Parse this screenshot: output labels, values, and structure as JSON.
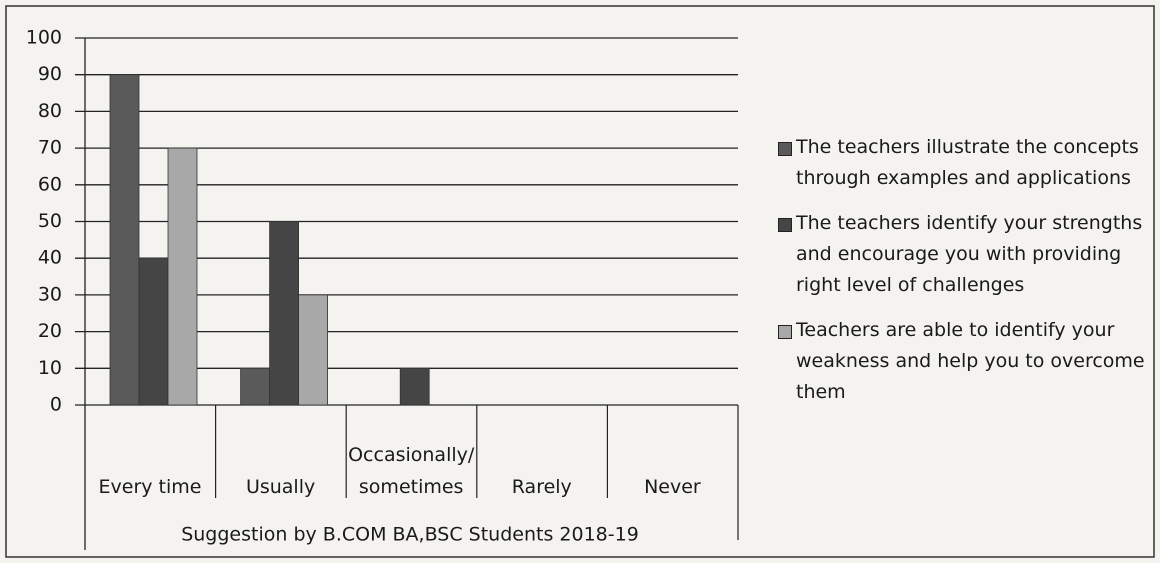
{
  "chart_data": {
    "type": "bar",
    "x_label": "Suggestion by B.COM BA,BSC Students 2018-19",
    "categories": [
      "Every time",
      "Usually",
      "Occasionally/ sometimes",
      "Rarely",
      "Never"
    ],
    "series": [
      {
        "name": "The teachers illustrate the concepts through examples and applications",
        "color": "#5a5a5a",
        "values": [
          90,
          10,
          0,
          0,
          0
        ]
      },
      {
        "name": "The teachers identify your strengths and encourage you with providing right level of challenges",
        "color": "#454545",
        "values": [
          40,
          50,
          10,
          0,
          0
        ]
      },
      {
        "name": "Teachers are able to identify your weakness and help you to overcome them",
        "color": "#a8a8a8",
        "values": [
          70,
          30,
          0,
          0,
          0
        ]
      }
    ],
    "ylim": [
      0,
      100
    ],
    "yticks": [
      0,
      10,
      20,
      30,
      40,
      50,
      60,
      70,
      80,
      90,
      100
    ],
    "grid": true,
    "legend": "right"
  }
}
